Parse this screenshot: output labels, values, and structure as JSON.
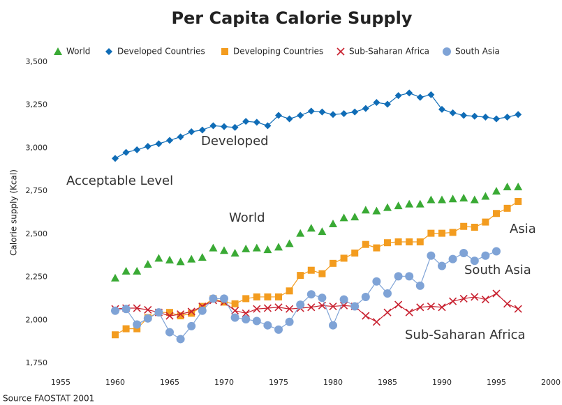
{
  "chart_data": {
    "type": "line",
    "title": "Per Capita Calorie Supply",
    "y_label": "Calorie supply (Kcal)",
    "source": "Source FAOSTAT 2001",
    "annotations": [
      "Developed",
      "Acceptable Level",
      "World",
      "Asia",
      "South Asia",
      "Sub-Saharan Africa"
    ],
    "x": [
      1960,
      1961,
      1962,
      1963,
      1964,
      1965,
      1966,
      1967,
      1968,
      1969,
      1970,
      1971,
      1972,
      1973,
      1974,
      1975,
      1976,
      1977,
      1978,
      1979,
      1980,
      1981,
      1982,
      1983,
      1984,
      1985,
      1986,
      1987,
      1988,
      1989,
      1990,
      1991,
      1992,
      1993,
      1994,
      1995,
      1996,
      1997
    ],
    "xlim": [
      1955,
      2000
    ],
    "xticks": [
      1955,
      1960,
      1965,
      1970,
      1975,
      1980,
      1985,
      1990,
      1995,
      2000
    ],
    "ylim": [
      1750,
      3500
    ],
    "yticks": [
      {
        "value": 1750,
        "label": "1,750"
      },
      {
        "value": 2000,
        "label": "2,000"
      },
      {
        "value": 2250,
        "label": "2,250"
      },
      {
        "value": 2500,
        "label": "2,500"
      },
      {
        "value": 2750,
        "label": "2,750"
      },
      {
        "value": 3000,
        "label": "3,000"
      },
      {
        "value": 3250,
        "label": "3,250"
      },
      {
        "value": 3500,
        "label": "3,500"
      }
    ],
    "grid": false,
    "legend": "top",
    "series": [
      {
        "name": "World",
        "color": "#3aaa35",
        "marker": "triangle",
        "line": false,
        "values": [
          2245,
          2285,
          2285,
          2325,
          2360,
          2350,
          2340,
          2355,
          2365,
          2420,
          2405,
          2390,
          2415,
          2420,
          2410,
          2425,
          2445,
          2505,
          2535,
          2515,
          2560,
          2595,
          2600,
          2640,
          2635,
          2655,
          2665,
          2675,
          2675,
          2700,
          2700,
          2705,
          2710,
          2700,
          2720,
          2750,
          2775,
          2775
        ]
      },
      {
        "name": "Developed Countries",
        "color": "#0f6cb6",
        "marker": "diamond",
        "line": true,
        "values": [
          2940,
          2975,
          2990,
          3010,
          3025,
          3045,
          3065,
          3095,
          3105,
          3130,
          3125,
          3120,
          3155,
          3150,
          3130,
          3190,
          3170,
          3190,
          3215,
          3210,
          3195,
          3200,
          3210,
          3230,
          3265,
          3255,
          3305,
          3320,
          3295,
          3310,
          3225,
          3205,
          3190,
          3185,
          3180,
          3170,
          3180,
          3195
        ]
      },
      {
        "name": "Developing Countries",
        "color": "#f39c1f",
        "marker": "square",
        "line": true,
        "values": [
          1915,
          1950,
          1950,
          2015,
          2045,
          2045,
          2025,
          2040,
          2080,
          2125,
          2105,
          2095,
          2125,
          2135,
          2135,
          2135,
          2170,
          2260,
          2290,
          2270,
          2330,
          2360,
          2390,
          2440,
          2420,
          2450,
          2455,
          2455,
          2455,
          2505,
          2505,
          2510,
          2545,
          2540,
          2570,
          2620,
          2650,
          2690
        ]
      },
      {
        "name": "Sub-Saharan Africa",
        "color": "#c8202f",
        "marker": "cross",
        "line": true,
        "values": [
          2065,
          2070,
          2070,
          2060,
          2045,
          2025,
          2035,
          2050,
          2080,
          2115,
          2105,
          2055,
          2040,
          2065,
          2070,
          2075,
          2065,
          2070,
          2075,
          2085,
          2080,
          2085,
          2080,
          2025,
          1990,
          2045,
          2090,
          2045,
          2075,
          2080,
          2075,
          2110,
          2125,
          2135,
          2120,
          2155,
          2095,
          2065
        ]
      },
      {
        "name": "South Asia",
        "color": "#7fa3d6",
        "marker": "circle",
        "line": true,
        "values": [
          2055,
          2065,
          1975,
          2010,
          2045,
          1930,
          1890,
          1965,
          2055,
          2125,
          2125,
          2015,
          2005,
          1995,
          1970,
          1945,
          1990,
          2090,
          2150,
          2130,
          1970,
          2120,
          2080,
          2135,
          2225,
          2155,
          2255,
          2255,
          2200,
          2375,
          2315,
          2355,
          2390,
          2345,
          2375,
          2400,
          null,
          null
        ]
      }
    ]
  }
}
